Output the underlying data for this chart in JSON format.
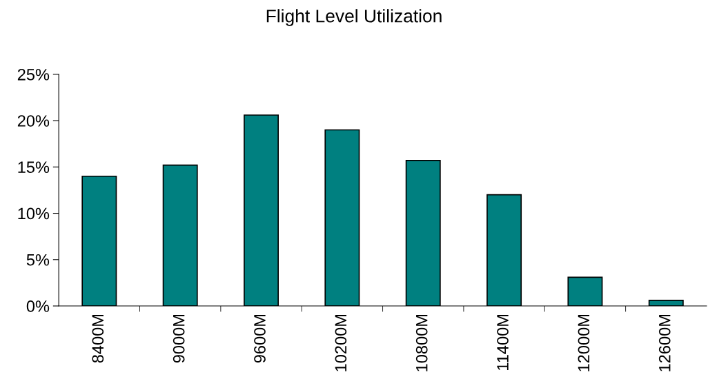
{
  "chart_data": {
    "type": "bar",
    "title": "Flight Level Utilization",
    "categories": [
      "8400M",
      "9000M",
      "9600M",
      "10200M",
      "10800M",
      "11400M",
      "12000M",
      "12600M"
    ],
    "values": [
      14.0,
      15.2,
      20.6,
      19.0,
      15.7,
      12.0,
      3.1,
      0.6
    ],
    "color": "#008080",
    "ylim": [
      0,
      25
    ],
    "yticks": [
      {
        "value": 0,
        "label": "0%"
      },
      {
        "value": 5,
        "label": "5%"
      },
      {
        "value": 10,
        "label": "10%"
      },
      {
        "value": 15,
        "label": "15%"
      },
      {
        "value": 20,
        "label": "20%"
      },
      {
        "value": 25,
        "label": "25%"
      }
    ],
    "grid": false,
    "legend": false
  }
}
